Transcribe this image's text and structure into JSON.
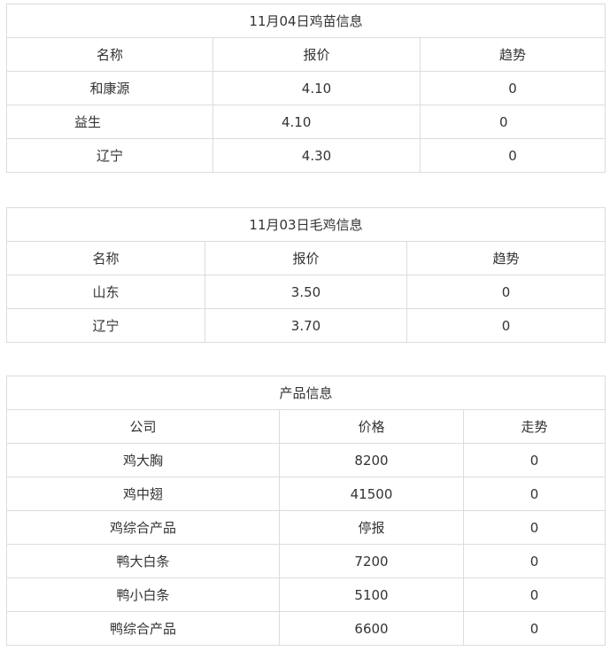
{
  "chick_seedling": {
    "title": "11月04日鸡苗信息",
    "headers": [
      "名称",
      "报价",
      "趋势"
    ],
    "rows": [
      [
        "和康源",
        "4.10",
        "0"
      ],
      [
        "益生",
        "4.10",
        "0"
      ],
      [
        "辽宁",
        "4.30",
        "0"
      ]
    ]
  },
  "live_chicken": {
    "title": "11月03日毛鸡信息",
    "headers": [
      "名称",
      "报价",
      "趋势"
    ],
    "rows": [
      [
        "山东",
        "3.50",
        "0"
      ],
      [
        "辽宁",
        "3.70",
        "0"
      ]
    ]
  },
  "products": {
    "title": "产品信息",
    "headers": [
      "公司",
      "价格",
      "走势"
    ],
    "rows": [
      [
        "鸡大胸",
        "8200",
        "0"
      ],
      [
        "鸡中翅",
        "41500",
        "0"
      ],
      [
        "鸡综合产品",
        "停报",
        "0"
      ],
      [
        "鸭大白条",
        "7200",
        "0"
      ],
      [
        "鸭小白条",
        "5100",
        "0"
      ],
      [
        "鸭综合产品",
        "6600",
        "0"
      ]
    ]
  }
}
